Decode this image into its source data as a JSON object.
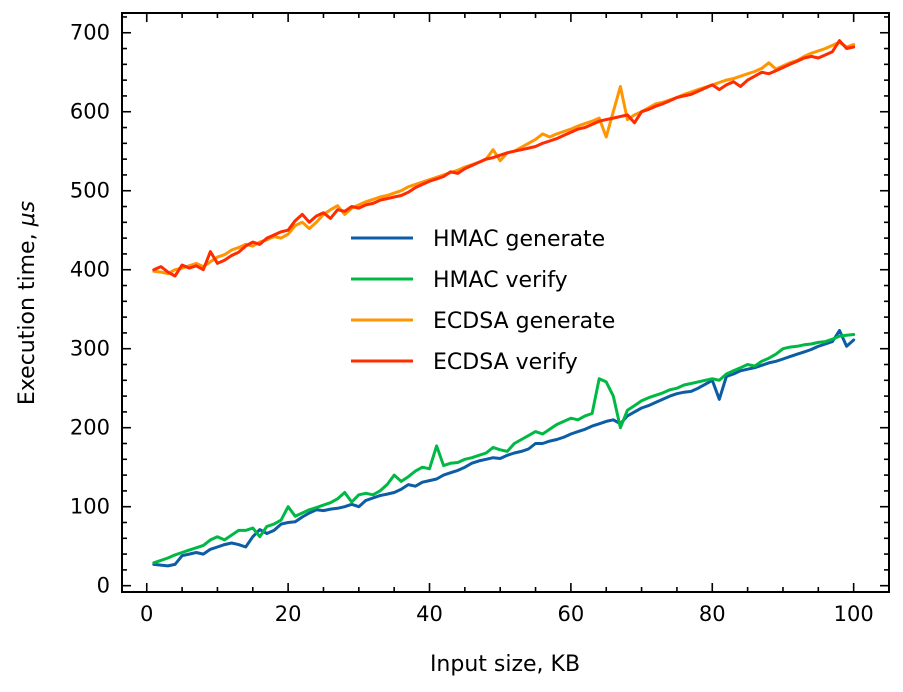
{
  "chart_data": {
    "type": "line",
    "xlabel": "Input size, KB",
    "ylabel_prefix": "Execution time, ",
    "ylabel_unit": "μs",
    "xlim": [
      -3.5,
      105
    ],
    "ylim": [
      -8,
      725
    ],
    "xticks": [
      0,
      20,
      40,
      60,
      80,
      100
    ],
    "yticks": [
      0,
      100,
      200,
      300,
      400,
      500,
      600,
      700
    ],
    "x_minor_step": 5,
    "y_minor_step": 20,
    "legend_position": "center",
    "x": [
      1,
      2,
      3,
      4,
      5,
      6,
      7,
      8,
      9,
      10,
      11,
      12,
      13,
      14,
      15,
      16,
      17,
      18,
      19,
      20,
      21,
      22,
      23,
      24,
      25,
      26,
      27,
      28,
      29,
      30,
      31,
      32,
      33,
      34,
      35,
      36,
      37,
      38,
      39,
      40,
      41,
      42,
      43,
      44,
      45,
      46,
      47,
      48,
      49,
      50,
      51,
      52,
      53,
      54,
      55,
      56,
      57,
      58,
      59,
      60,
      61,
      62,
      63,
      64,
      65,
      66,
      67,
      68,
      69,
      70,
      71,
      72,
      73,
      74,
      75,
      76,
      77,
      78,
      79,
      80,
      81,
      82,
      83,
      84,
      85,
      86,
      87,
      88,
      89,
      90,
      91,
      92,
      93,
      94,
      95,
      96,
      97,
      98,
      99,
      100
    ],
    "series": [
      {
        "name": "HMAC generate",
        "color": "#0C5DA5",
        "values": [
          27,
          26,
          25,
          27,
          38,
          40,
          42,
          40,
          46,
          49,
          52,
          54,
          52,
          49,
          62,
          71,
          66,
          70,
          78,
          80,
          81,
          87,
          92,
          96,
          95,
          97,
          98,
          100,
          103,
          100,
          108,
          111,
          114,
          116,
          118,
          122,
          128,
          126,
          131,
          133,
          135,
          140,
          143,
          146,
          150,
          155,
          158,
          160,
          162,
          161,
          165,
          168,
          170,
          173,
          180,
          180,
          183,
          185,
          188,
          192,
          195,
          198,
          202,
          205,
          208,
          210,
          205,
          215,
          220,
          225,
          228,
          232,
          236,
          240,
          243,
          245,
          246,
          250,
          255,
          260,
          236,
          265,
          268,
          272,
          274,
          276,
          279,
          282,
          284,
          287,
          290,
          293,
          296,
          299,
          303,
          306,
          309,
          323,
          303,
          311
        ]
      },
      {
        "name": "HMAC verify",
        "color": "#00B945",
        "values": [
          29,
          32,
          35,
          39,
          42,
          45,
          48,
          51,
          58,
          62,
          58,
          64,
          70,
          70,
          73,
          62,
          75,
          78,
          83,
          100,
          88,
          92,
          96,
          99,
          102,
          105,
          110,
          118,
          106,
          115,
          117,
          115,
          120,
          128,
          140,
          132,
          138,
          145,
          150,
          148,
          177,
          152,
          155,
          156,
          160,
          162,
          165,
          168,
          175,
          172,
          170,
          180,
          185,
          190,
          195,
          192,
          198,
          204,
          208,
          212,
          210,
          215,
          218,
          262,
          258,
          240,
          200,
          222,
          228,
          234,
          238,
          241,
          244,
          248,
          250,
          254,
          256,
          258,
          260,
          262,
          260,
          268,
          272,
          276,
          280,
          278,
          284,
          288,
          293,
          300,
          302,
          303,
          305,
          306,
          308,
          309,
          312,
          316,
          317,
          318
        ]
      },
      {
        "name": "ECDSA generate",
        "color": "#FF9500",
        "values": [
          398,
          397,
          395,
          400,
          402,
          405,
          408,
          404,
          410,
          416,
          419,
          425,
          428,
          432,
          430,
          435,
          438,
          442,
          440,
          445,
          456,
          460,
          452,
          460,
          470,
          476,
          481,
          470,
          478,
          482,
          486,
          489,
          492,
          494,
          497,
          500,
          505,
          508,
          511,
          514,
          517,
          520,
          523,
          526,
          530,
          533,
          536,
          540,
          552,
          538,
          548,
          550,
          555,
          560,
          565,
          572,
          568,
          572,
          575,
          578,
          582,
          585,
          588,
          592,
          568,
          600,
          632,
          590,
          596,
          600,
          605,
          610,
          612,
          615,
          618,
          622,
          625,
          628,
          631,
          634,
          637,
          640,
          642,
          645,
          648,
          651,
          655,
          662,
          654,
          658,
          662,
          665,
          670,
          674,
          677,
          680,
          684,
          688,
          682,
          685
        ]
      },
      {
        "name": "ECDSA verify",
        "color": "#FF2C00",
        "values": [
          400,
          404,
          397,
          392,
          406,
          402,
          405,
          400,
          423,
          408,
          412,
          418,
          422,
          430,
          435,
          432,
          440,
          444,
          448,
          450,
          462,
          470,
          460,
          468,
          472,
          465,
          476,
          474,
          480,
          478,
          482,
          484,
          488,
          490,
          492,
          494,
          498,
          504,
          508,
          512,
          515,
          518,
          524,
          522,
          528,
          532,
          536,
          540,
          542,
          545,
          548,
          550,
          552,
          554,
          556,
          560,
          563,
          566,
          570,
          574,
          578,
          580,
          584,
          588,
          590,
          592,
          594,
          596,
          586,
          600,
          603,
          607,
          610,
          614,
          618,
          620,
          622,
          626,
          630,
          634,
          628,
          634,
          638,
          632,
          640,
          645,
          650,
          648,
          652,
          656,
          660,
          664,
          668,
          670,
          668,
          672,
          676,
          690,
          680,
          682
        ]
      }
    ]
  }
}
